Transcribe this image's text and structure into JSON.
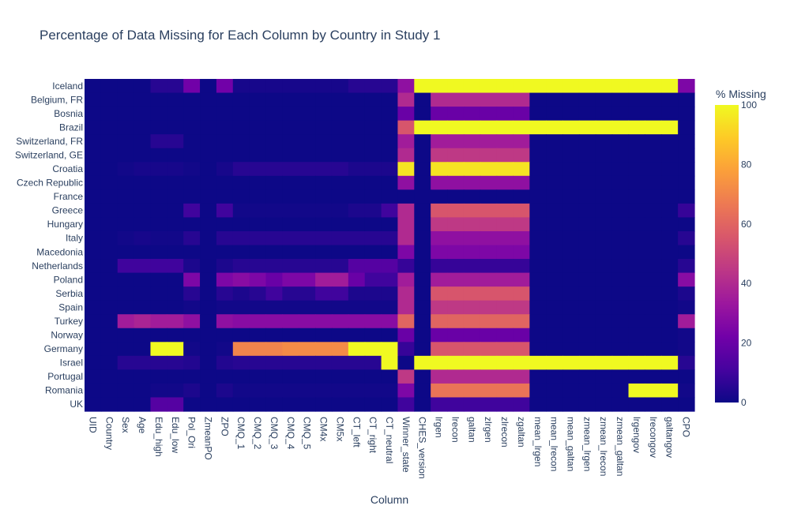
{
  "chart_data": {
    "type": "heatmap",
    "title": "Percentage of Data Missing for Each Column by Country in Study 1",
    "xlabel": "Column",
    "ylabel": "",
    "colorbar": {
      "title": "% Missing",
      "range": [
        0,
        100
      ],
      "ticks": [
        0,
        20,
        40,
        60,
        80,
        100
      ]
    },
    "colorscale": [
      "#0d0887",
      "#46039f",
      "#7201a8",
      "#9c179e",
      "#bd3786",
      "#d8576b",
      "#ed7953",
      "#fb9f3a",
      "#fdca26",
      "#f0f921"
    ],
    "x": [
      "UID",
      "Country",
      "Sex",
      "Age",
      "Edu_high",
      "Edu_low",
      "Pol_Ori",
      "ZmeanPO",
      "ZPO",
      "CMQ_1",
      "CMQ_2",
      "CMQ_3",
      "CMQ_4",
      "CMQ_5",
      "CM4x",
      "CM5x",
      "CT_left",
      "CT_right",
      "CT_neutral",
      "Winner_state",
      "CHES_version",
      "lrgen",
      "lrecon",
      "galtan",
      "zlrgen",
      "zlrecon",
      "zgaltan",
      "mean_lrgen",
      "mean_lrecon",
      "mean_galtan",
      "zmean_lrgen",
      "zmean_lrecon",
      "zmean_galtan",
      "lrgengov",
      "lrecongov",
      "galtangov",
      "CPO"
    ],
    "y": [
      "Iceland",
      "Belgium, FR",
      "Bosnia",
      "Brazil",
      "Switzerland, FR",
      "Switzerland, GE",
      "Croatia",
      "Czech Republic",
      "France",
      "Greece",
      "Hungary",
      "Italy",
      "Macedonia",
      "Netherlands",
      "Poland",
      "Serbia",
      "Spain",
      "Turkey",
      "Norway",
      "Germany",
      "Israel",
      "Portugal",
      "Romania",
      "UK"
    ],
    "z": [
      [
        0,
        0,
        0,
        0,
        5,
        5,
        22,
        0,
        22,
        2,
        2,
        2,
        2,
        2,
        2,
        2,
        5,
        5,
        5,
        30,
        100,
        100,
        100,
        100,
        100,
        100,
        100,
        100,
        100,
        100,
        100,
        100,
        100,
        100,
        100,
        100,
        25
      ],
      [
        0,
        0,
        0,
        0,
        0,
        0,
        0,
        0,
        0,
        0,
        0,
        0,
        0,
        0,
        0,
        0,
        0,
        0,
        0,
        40,
        0,
        40,
        40,
        40,
        40,
        40,
        40,
        0,
        0,
        0,
        0,
        0,
        0,
        0,
        0,
        0,
        0
      ],
      [
        0,
        0,
        0,
        0,
        0,
        0,
        0,
        0,
        0,
        0,
        0,
        0,
        0,
        0,
        0,
        0,
        0,
        0,
        0,
        20,
        0,
        20,
        20,
        20,
        20,
        20,
        20,
        0,
        0,
        0,
        0,
        0,
        0,
        0,
        0,
        0,
        0
      ],
      [
        0,
        0,
        0,
        0,
        0,
        0,
        0,
        0,
        0,
        0,
        0,
        0,
        0,
        0,
        0,
        0,
        0,
        0,
        0,
        55,
        100,
        100,
        100,
        100,
        100,
        100,
        100,
        100,
        100,
        100,
        100,
        100,
        100,
        100,
        100,
        100,
        0
      ],
      [
        0,
        0,
        0,
        0,
        5,
        5,
        0,
        0,
        0,
        0,
        0,
        0,
        0,
        0,
        0,
        0,
        0,
        0,
        0,
        35,
        0,
        35,
        35,
        35,
        35,
        35,
        35,
        0,
        0,
        0,
        0,
        0,
        0,
        0,
        0,
        0,
        0
      ],
      [
        0,
        0,
        0,
        0,
        0,
        0,
        0,
        0,
        0,
        0,
        0,
        0,
        0,
        0,
        0,
        0,
        0,
        0,
        0,
        40,
        0,
        45,
        45,
        45,
        45,
        45,
        45,
        0,
        0,
        0,
        0,
        0,
        0,
        0,
        0,
        0,
        0
      ],
      [
        0,
        0,
        1,
        2,
        2,
        2,
        1,
        0,
        2,
        5,
        5,
        5,
        5,
        5,
        5,
        5,
        3,
        3,
        3,
        95,
        0,
        95,
        95,
        95,
        95,
        95,
        95,
        0,
        0,
        0,
        0,
        0,
        0,
        0,
        0,
        0,
        0
      ],
      [
        0,
        0,
        0,
        0,
        0,
        0,
        0,
        0,
        0,
        0,
        0,
        0,
        0,
        0,
        0,
        0,
        0,
        0,
        0,
        30,
        0,
        30,
        30,
        30,
        30,
        30,
        30,
        0,
        0,
        0,
        0,
        0,
        0,
        0,
        0,
        0,
        0
      ],
      [
        0,
        0,
        0,
        0,
        0,
        0,
        0,
        0,
        0,
        0,
        0,
        0,
        0,
        0,
        0,
        0,
        0,
        0,
        0,
        0,
        0,
        0,
        0,
        0,
        0,
        0,
        0,
        0,
        0,
        0,
        0,
        0,
        0,
        0,
        0,
        0,
        0
      ],
      [
        0,
        0,
        0,
        0,
        0,
        0,
        10,
        0,
        10,
        1,
        1,
        1,
        1,
        1,
        1,
        1,
        3,
        3,
        10,
        40,
        0,
        55,
        55,
        55,
        55,
        55,
        55,
        0,
        0,
        0,
        0,
        0,
        0,
        0,
        0,
        0,
        8
      ],
      [
        0,
        0,
        0,
        0,
        0,
        0,
        0,
        0,
        0,
        0,
        0,
        0,
        0,
        0,
        0,
        0,
        0,
        0,
        0,
        40,
        0,
        45,
        45,
        45,
        45,
        45,
        45,
        0,
        0,
        0,
        0,
        0,
        0,
        0,
        0,
        0,
        0
      ],
      [
        0,
        0,
        1,
        2,
        1,
        1,
        5,
        0,
        5,
        5,
        5,
        5,
        5,
        5,
        5,
        5,
        5,
        5,
        5,
        40,
        0,
        30,
        30,
        30,
        30,
        30,
        30,
        0,
        0,
        0,
        0,
        0,
        0,
        0,
        0,
        0,
        5
      ],
      [
        0,
        0,
        0,
        0,
        0,
        0,
        0,
        0,
        0,
        0,
        0,
        0,
        0,
        0,
        0,
        0,
        0,
        0,
        0,
        25,
        0,
        25,
        25,
        25,
        25,
        25,
        25,
        0,
        0,
        0,
        0,
        0,
        0,
        0,
        0,
        0,
        0
      ],
      [
        0,
        0,
        10,
        10,
        10,
        10,
        3,
        0,
        3,
        5,
        5,
        5,
        5,
        5,
        5,
        5,
        15,
        15,
        15,
        8,
        0,
        8,
        8,
        8,
        8,
        8,
        8,
        0,
        0,
        0,
        0,
        0,
        0,
        0,
        0,
        0,
        5
      ],
      [
        0,
        0,
        0,
        0,
        0,
        0,
        25,
        0,
        25,
        28,
        25,
        20,
        25,
        25,
        35,
        35,
        20,
        10,
        10,
        35,
        0,
        35,
        35,
        35,
        35,
        35,
        35,
        0,
        0,
        0,
        0,
        0,
        0,
        0,
        0,
        0,
        28
      ],
      [
        0,
        0,
        0,
        0,
        0,
        0,
        5,
        0,
        5,
        3,
        5,
        10,
        5,
        5,
        10,
        10,
        3,
        3,
        3,
        40,
        0,
        55,
        55,
        55,
        55,
        55,
        55,
        0,
        0,
        0,
        0,
        0,
        0,
        0,
        0,
        0,
        3
      ],
      [
        0,
        0,
        0,
        0,
        0,
        0,
        1,
        0,
        1,
        1,
        1,
        1,
        1,
        1,
        1,
        1,
        1,
        1,
        1,
        40,
        0,
        45,
        45,
        45,
        45,
        45,
        45,
        0,
        0,
        0,
        0,
        0,
        0,
        0,
        0,
        0,
        1
      ],
      [
        0,
        0,
        35,
        38,
        35,
        35,
        30,
        0,
        30,
        28,
        28,
        28,
        28,
        28,
        28,
        28,
        28,
        28,
        28,
        60,
        0,
        60,
        60,
        60,
        60,
        60,
        60,
        0,
        0,
        0,
        0,
        0,
        0,
        0,
        0,
        0,
        35
      ],
      [
        0,
        0,
        0,
        0,
        0,
        0,
        0,
        0,
        0,
        0,
        0,
        0,
        0,
        0,
        0,
        0,
        0,
        0,
        0,
        20,
        0,
        20,
        20,
        20,
        20,
        20,
        20,
        0,
        0,
        0,
        0,
        0,
        0,
        0,
        0,
        0,
        1
      ],
      [
        0,
        0,
        0,
        0,
        100,
        100,
        1,
        0,
        1,
        70,
        70,
        70,
        72,
        72,
        72,
        72,
        100,
        100,
        100,
        8,
        0,
        55,
        55,
        55,
        55,
        55,
        55,
        0,
        0,
        0,
        0,
        0,
        0,
        0,
        0,
        0,
        1
      ],
      [
        0,
        0,
        5,
        5,
        5,
        5,
        4,
        0,
        4,
        5,
        5,
        5,
        5,
        5,
        5,
        5,
        5,
        5,
        100,
        0,
        100,
        100,
        100,
        100,
        100,
        100,
        100,
        100,
        100,
        100,
        100,
        100,
        100,
        100,
        100,
        100,
        5
      ],
      [
        0,
        0,
        0,
        0,
        0,
        0,
        0,
        0,
        0,
        0,
        0,
        0,
        0,
        0,
        0,
        0,
        0,
        0,
        0,
        45,
        0,
        40,
        40,
        40,
        40,
        40,
        40,
        0,
        0,
        0,
        0,
        0,
        0,
        0,
        0,
        0,
        0
      ],
      [
        0,
        0,
        0,
        0,
        1,
        1,
        3,
        0,
        3,
        1,
        1,
        1,
        1,
        1,
        1,
        1,
        1,
        1,
        1,
        25,
        0,
        65,
        65,
        65,
        65,
        65,
        65,
        0,
        0,
        0,
        0,
        0,
        0,
        100,
        100,
        100,
        1
      ],
      [
        0,
        0,
        0,
        0,
        15,
        15,
        0,
        0,
        0,
        0,
        0,
        0,
        0,
        0,
        0,
        0,
        0,
        0,
        0,
        10,
        0,
        10,
        10,
        10,
        10,
        10,
        10,
        0,
        0,
        0,
        0,
        0,
        0,
        0,
        0,
        0,
        0
      ]
    ]
  }
}
